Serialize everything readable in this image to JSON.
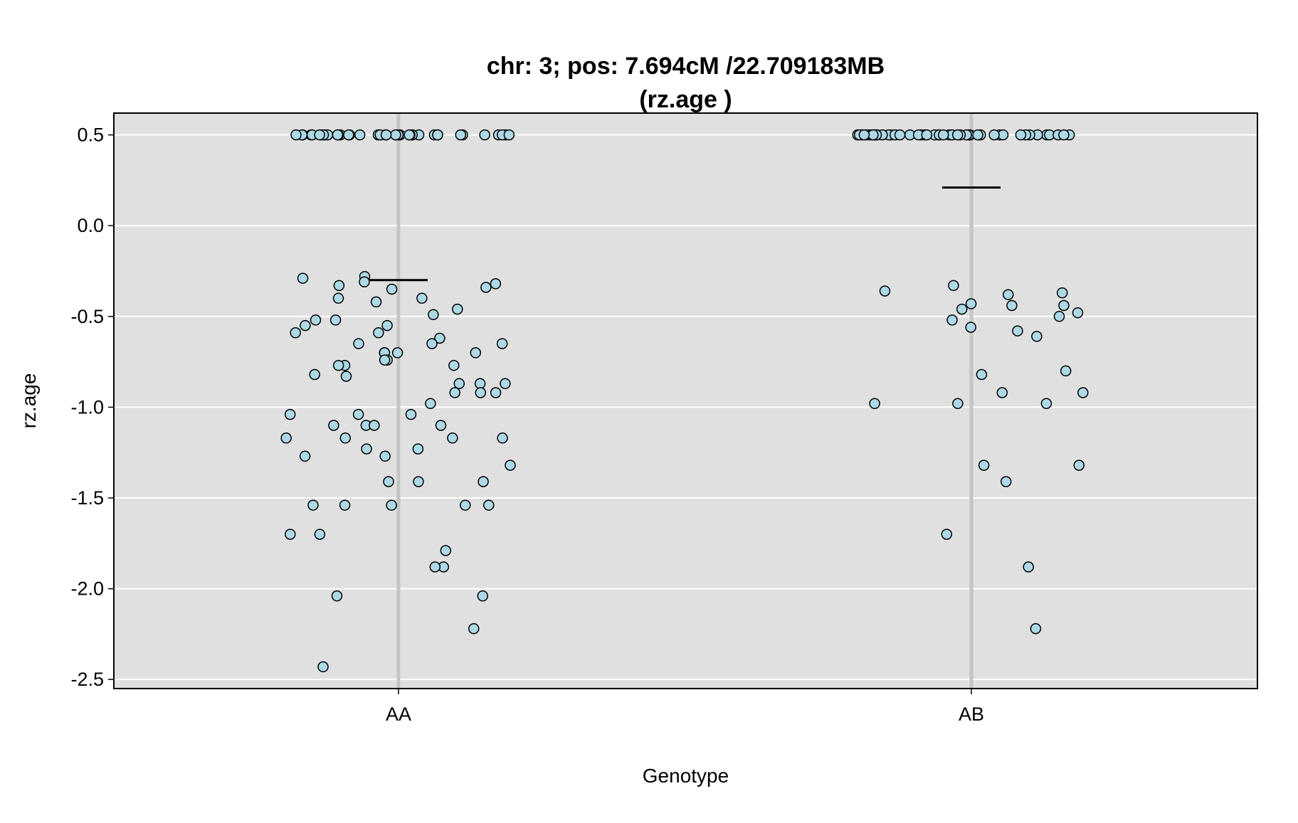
{
  "chart_data": {
    "type": "scatter",
    "title": "chr: 3; pos: 7.694cM /22.709183MB",
    "subtitle": "(rz.age )",
    "xlabel": "Genotype",
    "ylabel": "rz.age",
    "categories": [
      "AA",
      "AB"
    ],
    "ylim": [
      -2.55,
      0.62
    ],
    "yticks": [
      0.5,
      0.0,
      -0.5,
      -1.0,
      -1.5,
      -2.0,
      -2.5
    ],
    "ytick_labels": [
      "0.5",
      "0.0",
      "-0.5",
      "-1.0",
      "-1.5",
      "-2.0",
      "-2.5"
    ],
    "grid": true,
    "background": "#e0e0e0",
    "point_color": "#add8e6",
    "point_edge": "#000000",
    "category_line_color": "#c4c4c4",
    "means": [
      {
        "category": "AA",
        "value": -0.3
      },
      {
        "category": "AB",
        "value": 0.21
      }
    ],
    "points": [
      {
        "category": "AA",
        "values": [
          0.5,
          0.5,
          0.5,
          0.5,
          0.5,
          0.5,
          0.5,
          0.5,
          0.5,
          0.5,
          0.5,
          0.5,
          0.5,
          0.5,
          0.5,
          0.5,
          0.5,
          0.5,
          0.5,
          0.5,
          0.5,
          0.5,
          0.5,
          0.5,
          0.5,
          0.5,
          0.5,
          0.5,
          0.5,
          0.5,
          0.5,
          0.5,
          0.5,
          0.5,
          0.5,
          0.5,
          0.5,
          0.5,
          0.5,
          0.5,
          -0.28,
          -0.31,
          -0.29,
          -0.32,
          -0.33,
          -0.34,
          -0.35,
          -0.4,
          -0.4,
          -0.42,
          -0.46,
          -0.49,
          -0.52,
          -0.52,
          -0.55,
          -0.55,
          -0.59,
          -0.59,
          -0.62,
          -0.65,
          -0.65,
          -0.65,
          -0.7,
          -0.7,
          -0.7,
          -0.7,
          -0.74,
          -0.74,
          -0.77,
          -0.77,
          -0.77,
          -0.82,
          -0.83,
          -0.87,
          -0.87,
          -0.87,
          -0.92,
          -0.92,
          -0.92,
          -0.98,
          -1.04,
          -1.04,
          -1.04,
          -1.1,
          -1.1,
          -1.1,
          -1.1,
          -1.17,
          -1.17,
          -1.17,
          -1.17,
          -1.23,
          -1.23,
          -1.27,
          -1.27,
          -1.32,
          -1.41,
          -1.41,
          -1.41,
          -1.54,
          -1.54,
          -1.54,
          -1.54,
          -1.54,
          -1.7,
          -1.7,
          -1.79,
          -1.88,
          -1.88,
          -2.04,
          -2.04,
          -2.22,
          -2.43
        ]
      },
      {
        "category": "AB",
        "values": [
          0.5,
          0.5,
          0.5,
          0.5,
          0.5,
          0.5,
          0.5,
          0.5,
          0.5,
          0.5,
          0.5,
          0.5,
          0.5,
          0.5,
          0.5,
          0.5,
          0.5,
          0.5,
          0.5,
          0.5,
          0.5,
          0.5,
          0.5,
          0.5,
          0.5,
          0.5,
          0.5,
          0.5,
          0.5,
          0.5,
          0.5,
          0.5,
          0.5,
          0.5,
          0.5,
          0.5,
          0.5,
          0.5,
          0.5,
          0.5,
          0.5,
          0.5,
          0.5,
          0.5,
          0.5,
          0.5,
          0.5,
          0.5,
          -0.33,
          -0.36,
          -0.37,
          -0.38,
          -0.43,
          -0.44,
          -0.44,
          -0.46,
          -0.48,
          -0.5,
          -0.52,
          -0.56,
          -0.58,
          -0.61,
          -0.8,
          -0.82,
          -0.92,
          -0.92,
          -0.98,
          -0.98,
          -0.98,
          -1.32,
          -1.32,
          -1.41,
          -1.7,
          -1.88,
          -2.22
        ]
      }
    ]
  }
}
